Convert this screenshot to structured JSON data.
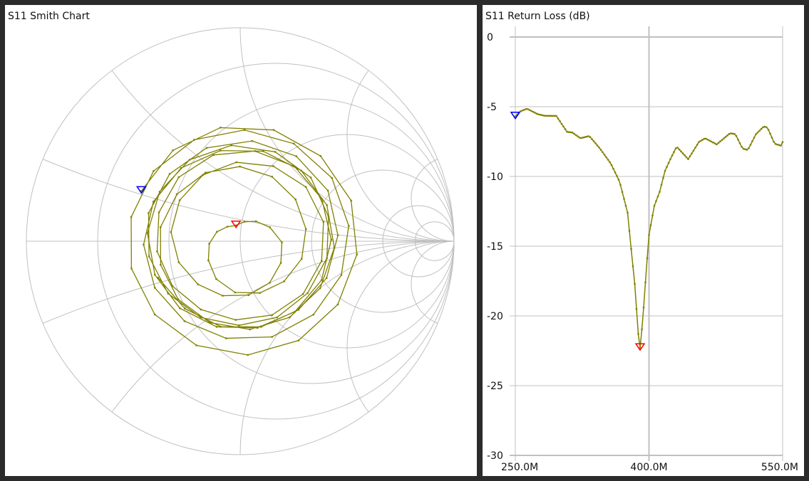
{
  "smith": {
    "title": "S11 Smith Chart"
  },
  "return_loss": {
    "title": "S11 Return Loss (dB)"
  },
  "colors": {
    "background": "#2b2b2b",
    "grid": "#c0c0c0",
    "trace": "#808000",
    "marker1": "#0000ff",
    "marker2": "#ff0000"
  },
  "chart_data": [
    {
      "type": "line",
      "title": "S11 Return Loss (dB)",
      "xlabel": "",
      "ylabel": "",
      "x_unit": "MHz",
      "xlim": [
        250,
        550
      ],
      "ylim": [
        -30,
        0
      ],
      "x_tick_values": [
        250,
        400,
        550
      ],
      "x_tick_labels": [
        "250.0M",
        "400.0M",
        "550.0M"
      ],
      "y_ticks": [
        0,
        -5,
        -10,
        -15,
        -20,
        -25,
        -30
      ],
      "y_tick_labels": [
        "0",
        "-5",
        "-10",
        "-15",
        "-20",
        "-25",
        "-30"
      ],
      "grid": true,
      "series": [
        {
          "name": "S11",
          "x": [
            250,
            255,
            263,
            275,
            283,
            296,
            308,
            314,
            323,
            333,
            345,
            357,
            367,
            376,
            380,
            384,
            388,
            390,
            393,
            397,
            400,
            406,
            412,
            418,
            424,
            431,
            444,
            456,
            463,
            476,
            491,
            497,
            505,
            511,
            520,
            529,
            533,
            541,
            548,
            550
          ],
          "y": [
            -5.7,
            -5.35,
            -5.14,
            -5.53,
            -5.65,
            -5.66,
            -6.8,
            -6.85,
            -7.26,
            -7.1,
            -8.0,
            -9.06,
            -10.36,
            -12.6,
            -15.2,
            -17.7,
            -21.3,
            -22.3,
            -20.3,
            -16.7,
            -14.2,
            -12.1,
            -11.1,
            -9.6,
            -8.76,
            -7.86,
            -8.76,
            -7.53,
            -7.26,
            -7.7,
            -6.9,
            -6.97,
            -8.0,
            -8.1,
            -6.97,
            -6.41,
            -6.5,
            -7.65,
            -7.79,
            -7.53
          ]
        }
      ],
      "markers": [
        {
          "id": 1,
          "x": 250,
          "y": -5.7,
          "color": "#0000ff"
        },
        {
          "id": 2,
          "x": 390,
          "y": -22.3,
          "color": "#ff0000"
        }
      ]
    },
    {
      "type": "scatter",
      "title": "S11 Smith Chart",
      "resistance_circles": [
        0.2,
        0.5,
        1,
        2,
        5,
        10
      ],
      "reactance_arcs": [
        0.2,
        0.5,
        1,
        2,
        5
      ],
      "phase_start_deg": 153,
      "phase_slope_deg_per_mhz": -10.63,
      "note_source": "magnitude from S11 series, phase rotating with frequency"
    }
  ]
}
